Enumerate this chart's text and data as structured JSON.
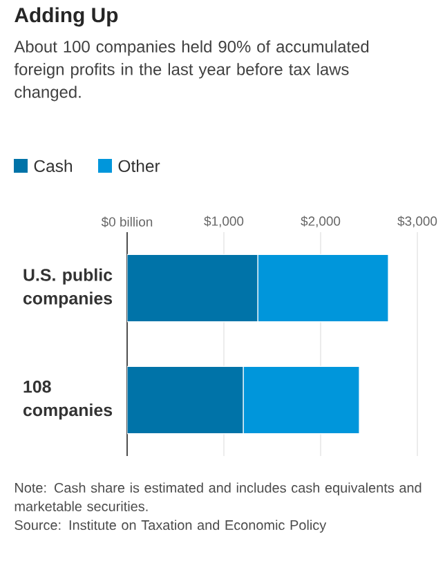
{
  "chart_data": {
    "type": "bar",
    "orientation": "horizontal",
    "stacked": true,
    "title": "Adding Up",
    "subtitle": "About 100 companies held 90% of accumulated foreign profits in the last year before tax laws changed.",
    "categories": [
      "U.S. public companies",
      "108 companies"
    ],
    "series": [
      {
        "name": "Cash",
        "color": "#0073a8",
        "values": [
          1350,
          1200
        ]
      },
      {
        "name": "Other",
        "color": "#0096db",
        "values": [
          1350,
          1200
        ]
      }
    ],
    "xlim": [
      0,
      3000
    ],
    "xticks": [
      {
        "value": 0,
        "label": "$0 billion"
      },
      {
        "value": 1000,
        "label": "$1,000"
      },
      {
        "value": 2000,
        "label": "$2,000"
      },
      {
        "value": 3000,
        "label": "$3,000"
      }
    ],
    "grid": "x",
    "legend": "top left",
    "annotations": [
      "Note: Cash share is estimated and includes cash equivalents and marketable securities.",
      "Source: Institute on Taxation and Economic Policy"
    ]
  }
}
